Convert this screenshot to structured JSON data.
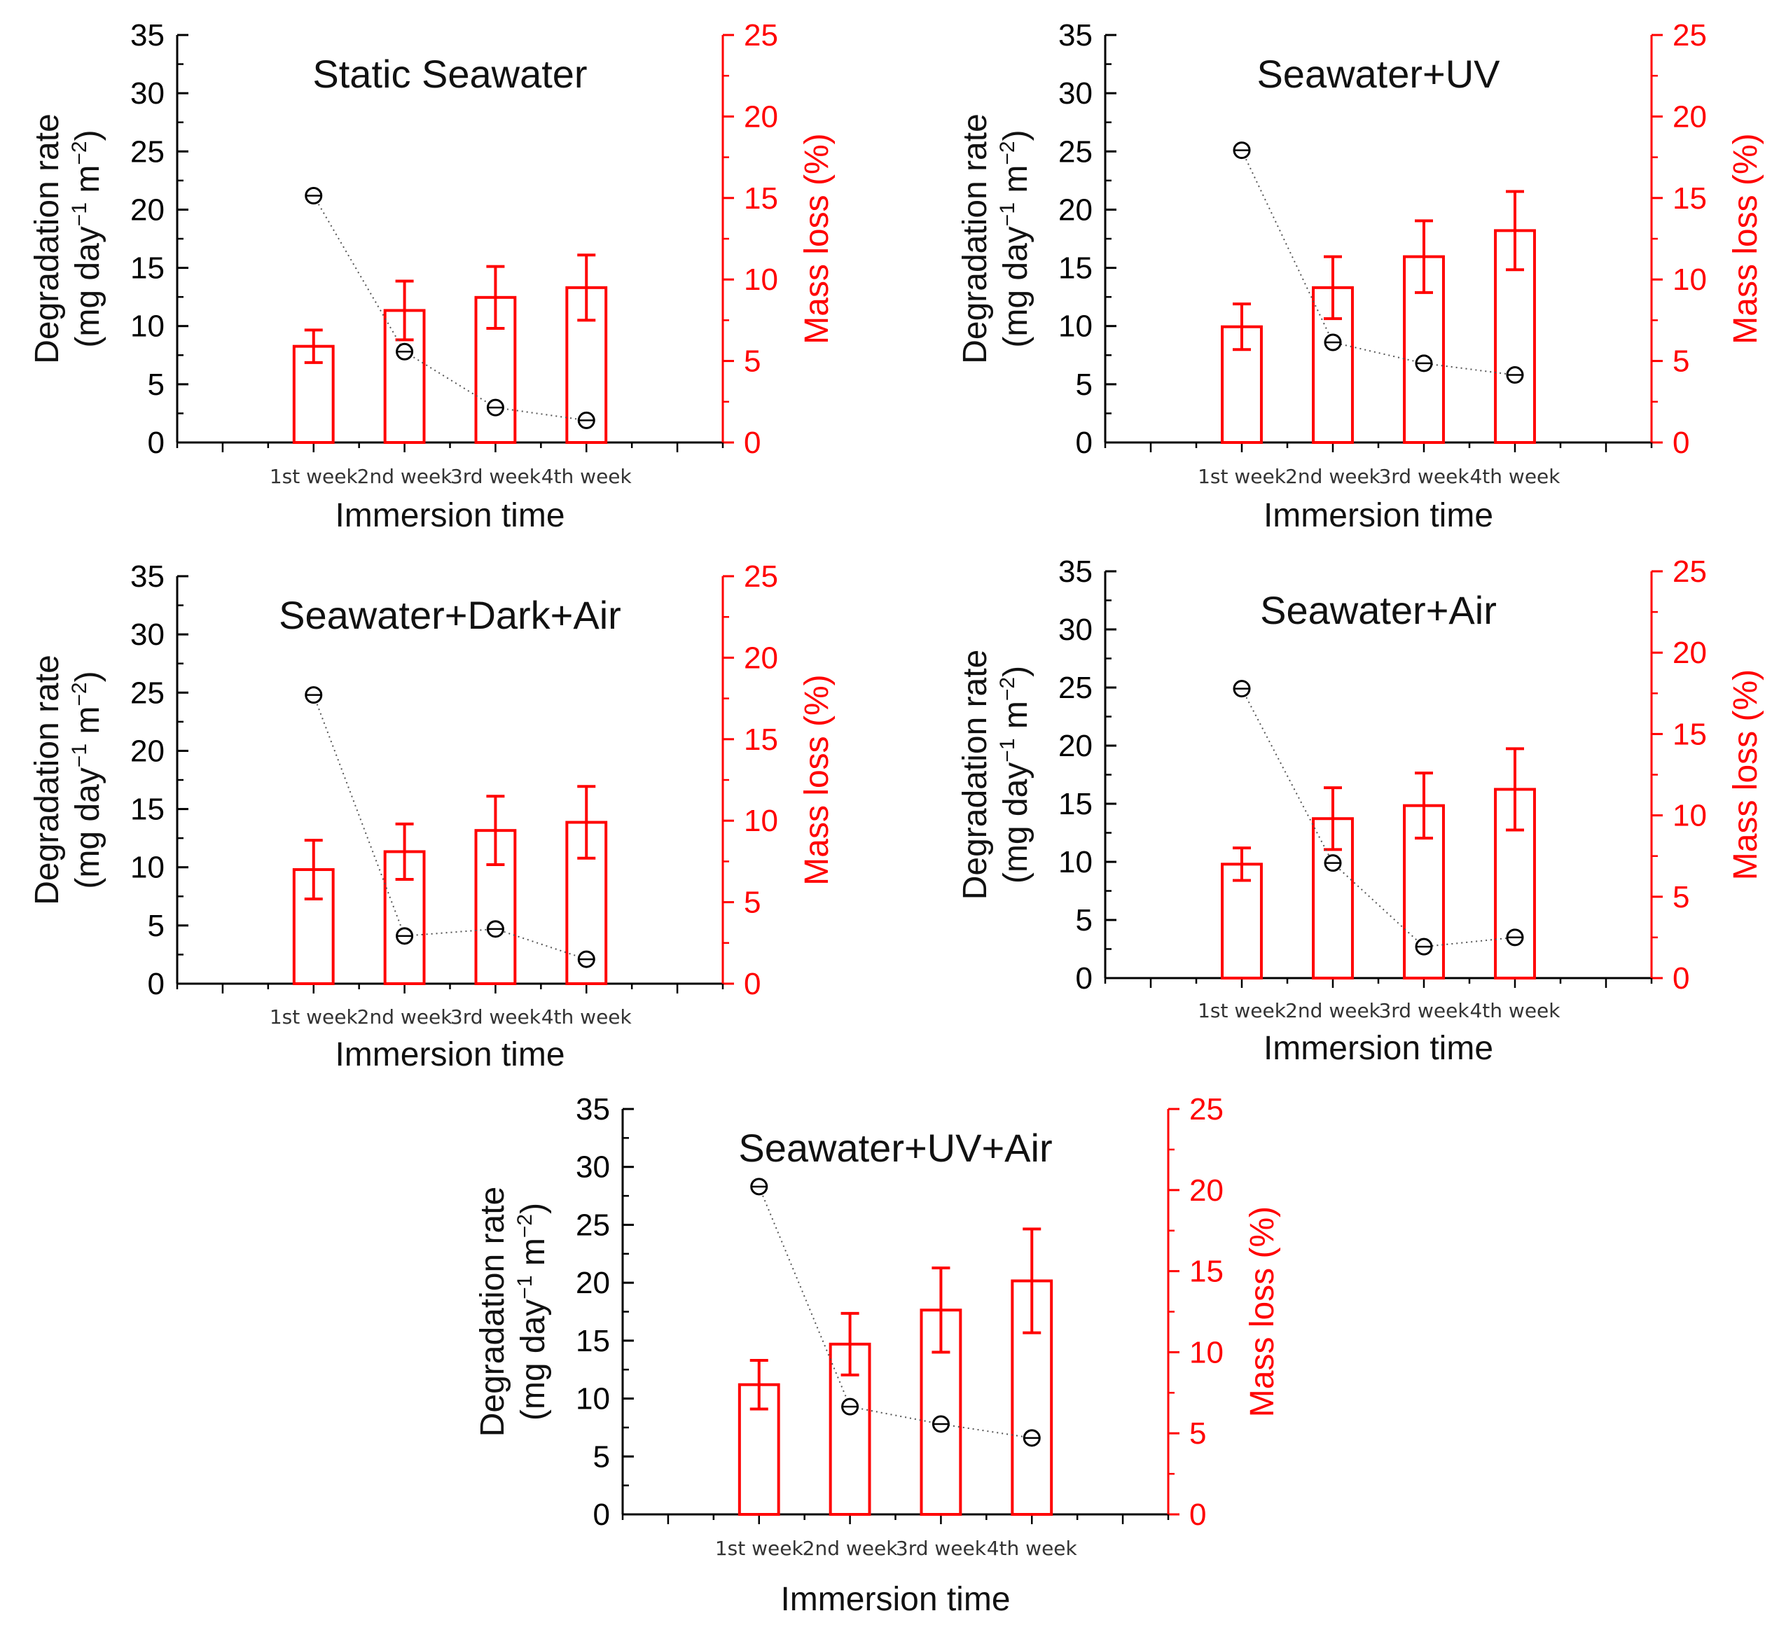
{
  "figure": {
    "left_axis_label": "Degradation rate",
    "left_axis_units": {
      "open": "(mg day",
      "exp1": "−1",
      "mid": " m",
      "exp2": "−2",
      "close": ")"
    },
    "right_axis_label": "Mass loss (%)",
    "x_axis_label": "Immersion time"
  },
  "colors": {
    "bars": "#ff0000",
    "points": "#000000",
    "axes": "#000000",
    "right_axis": "#ff0000"
  },
  "chart_data": [
    {
      "type": "bar+scatter (dual axis)",
      "title": "Static Seawater",
      "categories": [
        "1st week",
        "2nd week",
        "3rd week",
        "4th week"
      ],
      "xlabel": "Immersion time",
      "ylabel_left": "Degradation rate (mg day−1 m−2)",
      "ylim_left": [
        0,
        35
      ],
      "yticks_left": [
        0,
        5,
        10,
        15,
        20,
        25,
        30,
        35
      ],
      "ylabel_right": "Mass loss (%)",
      "ylim_right": [
        0,
        25
      ],
      "yticks_right": [
        0,
        5,
        10,
        15,
        20,
        25
      ],
      "series": [
        {
          "name": "Mass loss (%)",
          "axis": "right",
          "kind": "bar",
          "values": [
            5.9,
            8.1,
            8.9,
            9.5
          ],
          "errors": [
            1.0,
            1.8,
            1.9,
            2.0
          ]
        },
        {
          "name": "Degradation rate",
          "axis": "left",
          "kind": "scatter+dotted-line",
          "values": [
            21.2,
            7.8,
            3.0,
            1.9
          ]
        }
      ]
    },
    {
      "type": "bar+scatter (dual axis)",
      "title": "Seawater+UV",
      "categories": [
        "1st week",
        "2nd week",
        "3rd week",
        "4th week"
      ],
      "xlabel": "Immersion time",
      "ylabel_left": "Degradation rate (mg day−1 m−2)",
      "ylim_left": [
        0,
        35
      ],
      "yticks_left": [
        0,
        5,
        10,
        15,
        20,
        25,
        30,
        35
      ],
      "ylabel_right": "Mass loss (%)",
      "ylim_right": [
        0,
        25
      ],
      "yticks_right": [
        0,
        5,
        10,
        15,
        20,
        25
      ],
      "series": [
        {
          "name": "Mass loss (%)",
          "axis": "right",
          "kind": "bar",
          "values": [
            7.1,
            9.5,
            11.4,
            13.0
          ],
          "errors": [
            1.4,
            1.9,
            2.2,
            2.4
          ]
        },
        {
          "name": "Degradation rate",
          "axis": "left",
          "kind": "scatter+dotted-line",
          "values": [
            25.1,
            8.6,
            6.8,
            5.8
          ]
        }
      ]
    },
    {
      "type": "bar+scatter (dual axis)",
      "title": "Seawater+Dark+Air",
      "categories": [
        "1st week",
        "2nd week",
        "3rd week",
        "4th week"
      ],
      "xlabel": "Immersion time",
      "ylabel_left": "Degradation rate (mg day−1 m−2)",
      "ylim_left": [
        0,
        35
      ],
      "yticks_left": [
        0,
        5,
        10,
        15,
        20,
        25,
        30,
        35
      ],
      "ylabel_right": "Mass loss (%)",
      "ylim_right": [
        0,
        25
      ],
      "yticks_right": [
        0,
        5,
        10,
        15,
        20,
        25
      ],
      "series": [
        {
          "name": "Mass loss (%)",
          "axis": "right",
          "kind": "bar",
          "values": [
            7.0,
            8.1,
            9.4,
            9.9
          ],
          "errors": [
            1.8,
            1.7,
            2.1,
            2.2
          ]
        },
        {
          "name": "Degradation rate",
          "axis": "left",
          "kind": "scatter+dotted-line",
          "values": [
            24.8,
            4.1,
            4.7,
            2.1
          ]
        }
      ]
    },
    {
      "type": "bar+scatter (dual axis)",
      "title": "Seawater+Air",
      "categories": [
        "1st week",
        "2nd week",
        "3rd week",
        "4th week"
      ],
      "xlabel": "Immersion time",
      "ylabel_left": "Degradation rate (mg day−1 m−2)",
      "ylim_left": [
        0,
        35
      ],
      "yticks_left": [
        0,
        5,
        10,
        15,
        20,
        25,
        30,
        35
      ],
      "ylabel_right": "Mass loss (%)",
      "ylim_right": [
        0,
        25
      ],
      "yticks_right": [
        0,
        5,
        10,
        15,
        20,
        25
      ],
      "series": [
        {
          "name": "Mass loss (%)",
          "axis": "right",
          "kind": "bar",
          "values": [
            7.0,
            9.8,
            10.6,
            11.6
          ],
          "errors": [
            1.0,
            1.9,
            2.0,
            2.5
          ]
        },
        {
          "name": "Degradation rate",
          "axis": "left",
          "kind": "scatter+dotted-line",
          "values": [
            24.9,
            9.9,
            2.7,
            3.5
          ]
        }
      ]
    },
    {
      "type": "bar+scatter (dual axis)",
      "title": "Seawater+UV+Air",
      "categories": [
        "1st week",
        "2nd week",
        "3rd week",
        "4th week"
      ],
      "xlabel": "Immersion time",
      "ylabel_left": "Degradation rate (mg day−1 m−2)",
      "ylim_left": [
        0,
        35
      ],
      "yticks_left": [
        0,
        5,
        10,
        15,
        20,
        25,
        30,
        35
      ],
      "ylabel_right": "Mass loss (%)",
      "ylim_right": [
        0,
        25
      ],
      "yticks_right": [
        0,
        5,
        10,
        15,
        20,
        25
      ],
      "series": [
        {
          "name": "Mass loss (%)",
          "axis": "right",
          "kind": "bar",
          "values": [
            8.0,
            10.5,
            12.6,
            14.4
          ],
          "errors": [
            1.5,
            1.9,
            2.6,
            3.2
          ]
        },
        {
          "name": "Degradation rate",
          "axis": "left",
          "kind": "scatter+dotted-line",
          "values": [
            28.3,
            9.3,
            7.8,
            6.6
          ]
        }
      ]
    }
  ]
}
